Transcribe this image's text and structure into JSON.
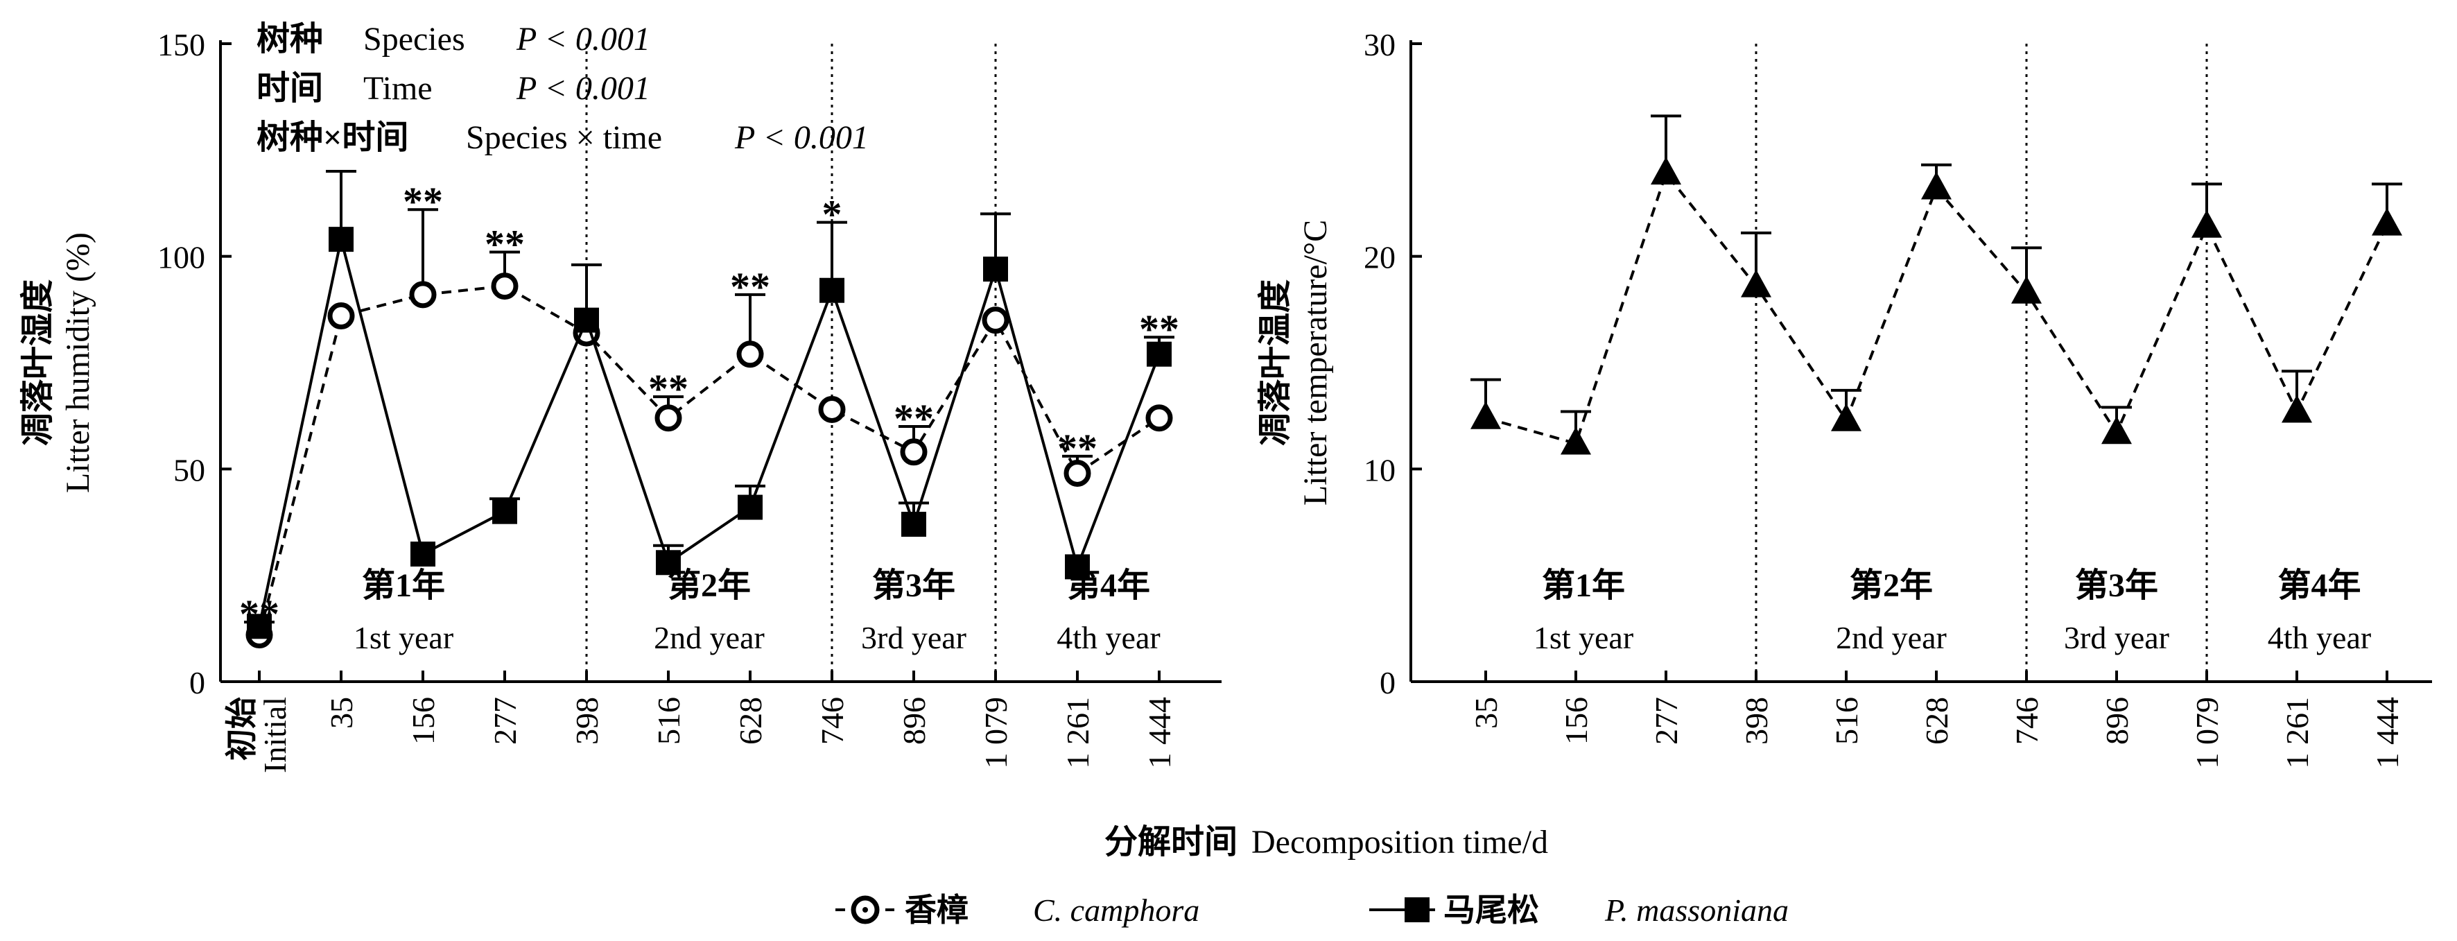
{
  "chart_data": [
    {
      "type": "line",
      "ylabel_cn": "凋落叶湿度",
      "ylabel_en": "Litter humidity (%)",
      "ylim": [
        0,
        150
      ],
      "yticks": [
        "0",
        "50",
        "100",
        "150"
      ],
      "categories": [
        "35",
        "156",
        "277",
        "398",
        "516",
        "628",
        "746",
        "896",
        "1 079",
        "1 261",
        "1 444"
      ],
      "initial_label_cn": "初始",
      "initial_label_en": "Initial",
      "year_dividers_after_index": [
        3,
        6,
        8
      ],
      "years": [
        {
          "cn": "第1年",
          "en": "1st year"
        },
        {
          "cn": "第2年",
          "en": "2nd year"
        },
        {
          "cn": "第3年",
          "en": "3rd year"
        },
        {
          "cn": "第4年",
          "en": "4th year"
        }
      ],
      "stats": [
        {
          "label_cn": "树种",
          "label_en": "Species",
          "p": "P < 0.001"
        },
        {
          "label_cn": "时间",
          "label_en": "Time",
          "p": "P < 0.001"
        },
        {
          "label_cn": "树种×时间",
          "label_en": "Species × time",
          "p": "P < 0.001"
        }
      ],
      "series": [
        {
          "name_cn": "香樟",
          "name_en": "C. camphora",
          "marker": "open-circle",
          "line": "dashed",
          "initial": 11,
          "initial_err": 0,
          "values": [
            86,
            91,
            93,
            82,
            62,
            77,
            64,
            54,
            85,
            49,
            62
          ],
          "errors": [
            0,
            20,
            8,
            0,
            5,
            14,
            0,
            6,
            0,
            4,
            0
          ]
        },
        {
          "name_cn": "马尾松",
          "name_en": "P. massoniana",
          "marker": "filled-square",
          "line": "solid",
          "initial": 13,
          "initial_err": 1,
          "values": [
            104,
            30,
            40,
            85,
            28,
            41,
            92,
            37,
            97,
            27,
            77
          ],
          "errors": [
            16,
            0,
            3,
            13,
            4,
            5,
            16,
            5,
            13,
            0,
            4
          ]
        }
      ],
      "significance": [
        {
          "point": "initial",
          "mark": "**"
        },
        {
          "point": 1,
          "mark": "**"
        },
        {
          "point": 2,
          "mark": "**"
        },
        {
          "point": 4,
          "mark": "**"
        },
        {
          "point": 5,
          "mark": "**"
        },
        {
          "point": 6,
          "mark": "*"
        },
        {
          "point": 7,
          "mark": "**"
        },
        {
          "point": 9,
          "mark": "**"
        },
        {
          "point": 10,
          "mark": "**"
        }
      ]
    },
    {
      "type": "line",
      "ylabel_cn": "凋落叶温度",
      "ylabel_en": "Litter temperature/°C",
      "ylim": [
        0,
        30
      ],
      "yticks": [
        "0",
        "10",
        "20",
        "30"
      ],
      "categories": [
        "35",
        "156",
        "277",
        "398",
        "516",
        "628",
        "746",
        "896",
        "1 079",
        "1 261",
        "1 444"
      ],
      "year_dividers_after_index": [
        3,
        6,
        8
      ],
      "years": [
        {
          "cn": "第1年",
          "en": "1st year"
        },
        {
          "cn": "第2年",
          "en": "2nd year"
        },
        {
          "cn": "第3年",
          "en": "3rd year"
        },
        {
          "cn": "第4年",
          "en": "4th year"
        }
      ],
      "series": [
        {
          "marker": "filled-triangle",
          "line": "dashed",
          "values": [
            12.4,
            11.2,
            23.9,
            18.6,
            12.3,
            23.2,
            18.3,
            11.7,
            21.4,
            12.7,
            21.5
          ],
          "errors": [
            1.8,
            1.5,
            2.7,
            2.5,
            1.4,
            1.1,
            2.1,
            1.2,
            2.0,
            1.9,
            1.9
          ]
        }
      ]
    }
  ],
  "shared": {
    "xlabel_cn": "分解时间",
    "xlabel_en": "Decomposition time/d",
    "legend": [
      {
        "cn": "香樟",
        "en": "C. camphora",
        "marker": "open-circle",
        "line": "dashed"
      },
      {
        "cn": "马尾松",
        "en": "P. massoniana",
        "marker": "filled-square",
        "line": "solid"
      }
    ]
  }
}
